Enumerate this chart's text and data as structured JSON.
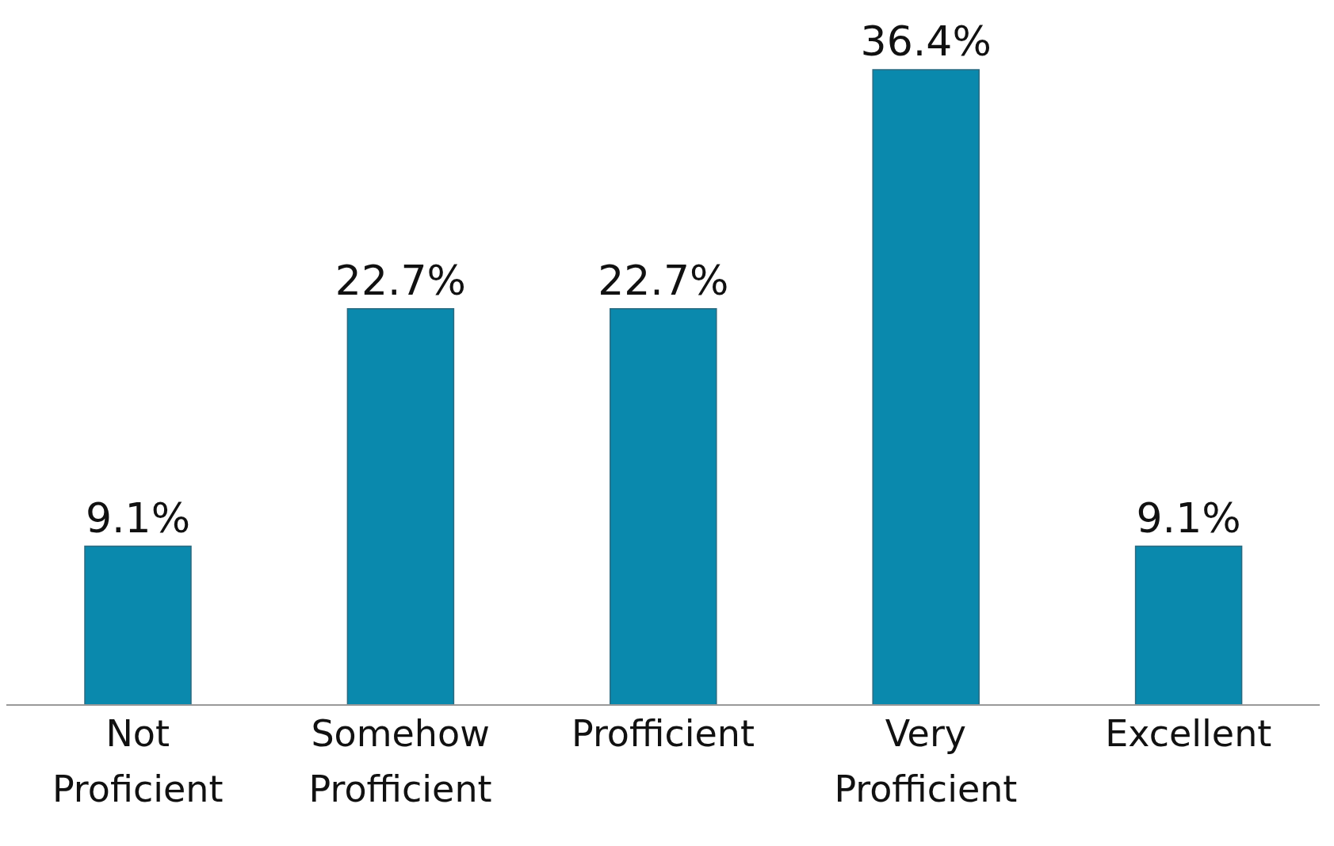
{
  "chart_data": {
    "type": "bar",
    "categories": [
      "Not Proficient",
      "Somehow Profficient",
      "Profficient",
      "Very Profficient",
      "Excellent"
    ],
    "values": [
      9.1,
      22.7,
      22.7,
      36.4,
      9.1
    ],
    "value_labels": [
      "9.1%",
      "22.7%",
      "22.7%",
      "36.4%",
      "9.1%"
    ],
    "color": "#0a89ad"
  }
}
